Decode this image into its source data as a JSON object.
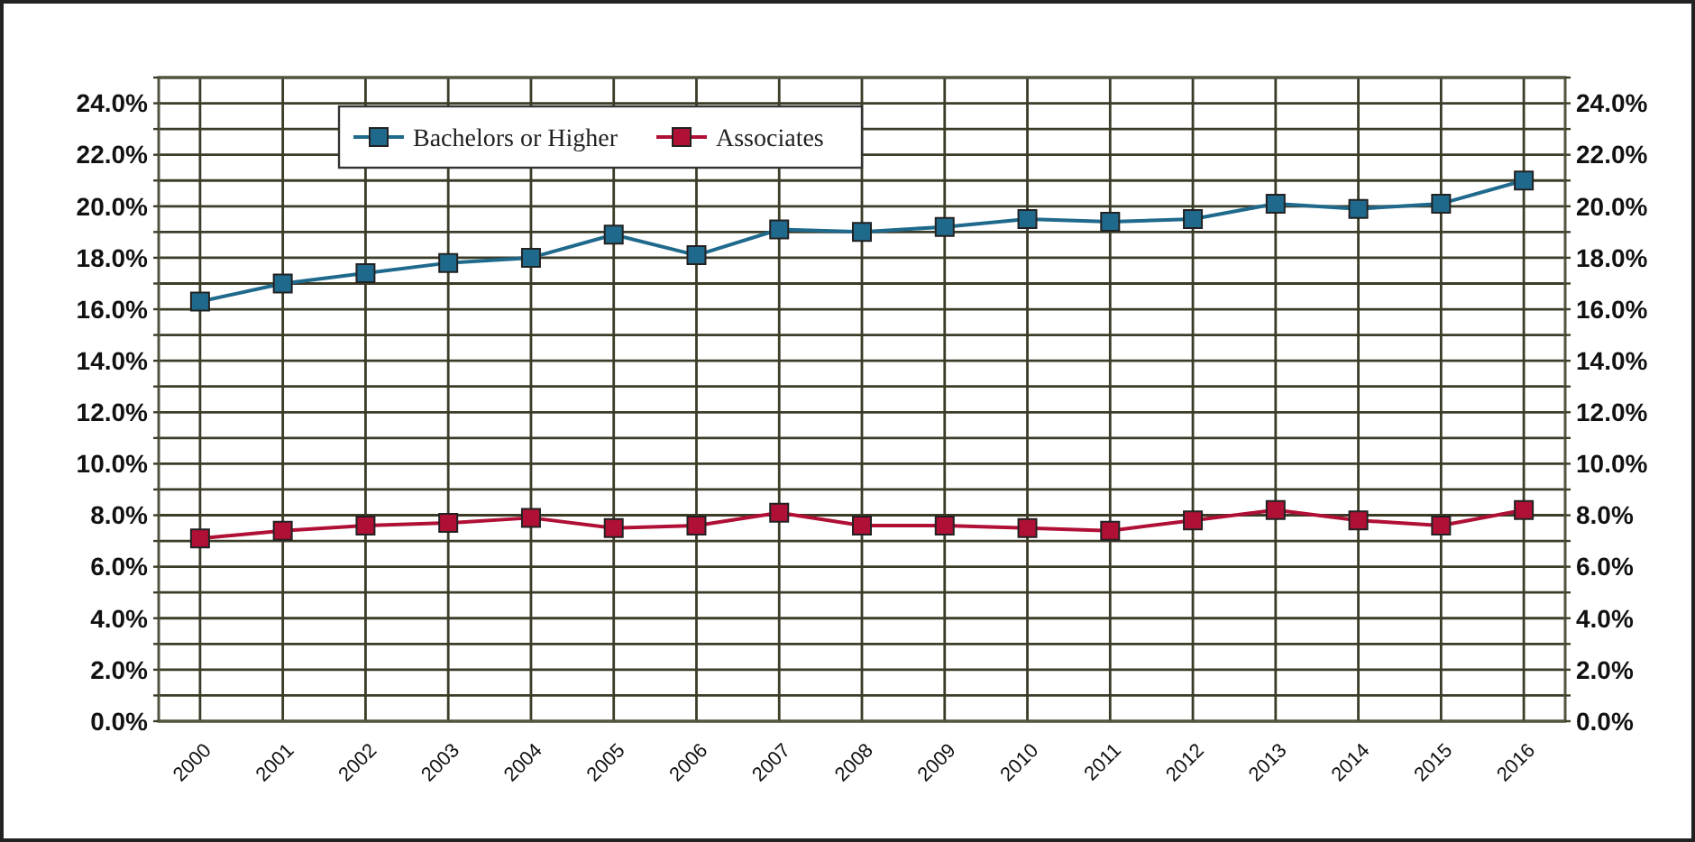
{
  "chart_data": {
    "type": "line",
    "categories": [
      "2000",
      "2001",
      "2002",
      "2003",
      "2004",
      "2005",
      "2006",
      "2007",
      "2008",
      "2009",
      "2010",
      "2011",
      "2012",
      "2013",
      "2014",
      "2015",
      "2016"
    ],
    "series": [
      {
        "name": "Bachelors or Higher",
        "color": "#1f6a8c",
        "values": [
          16.3,
          17.0,
          17.4,
          17.8,
          18.0,
          18.9,
          18.1,
          19.1,
          19.0,
          19.2,
          19.5,
          19.4,
          19.5,
          20.1,
          19.9,
          20.1,
          21.0
        ]
      },
      {
        "name": "Associates",
        "color": "#b01035",
        "values": [
          7.1,
          7.4,
          7.6,
          7.7,
          7.9,
          7.5,
          7.6,
          8.1,
          7.6,
          7.6,
          7.5,
          7.4,
          7.8,
          8.2,
          7.8,
          7.6,
          8.2
        ]
      }
    ],
    "ylim": [
      0,
      25
    ],
    "yticks": [
      {
        "value": 0,
        "label": "0.0%"
      },
      {
        "value": 1,
        "label": null
      },
      {
        "value": 2,
        "label": "2.0%"
      },
      {
        "value": 3,
        "label": null
      },
      {
        "value": 4,
        "label": "4.0%"
      },
      {
        "value": 5,
        "label": null
      },
      {
        "value": 6,
        "label": "6.0%"
      },
      {
        "value": 7,
        "label": null
      },
      {
        "value": 8,
        "label": "8.0%"
      },
      {
        "value": 9,
        "label": null
      },
      {
        "value": 10,
        "label": "10.0%"
      },
      {
        "value": 11,
        "label": null
      },
      {
        "value": 12,
        "label": "12.0%"
      },
      {
        "value": 13,
        "label": null
      },
      {
        "value": 14,
        "label": "14.0%"
      },
      {
        "value": 15,
        "label": null
      },
      {
        "value": 16,
        "label": "16.0%"
      },
      {
        "value": 17,
        "label": null
      },
      {
        "value": 18,
        "label": "18.0%"
      },
      {
        "value": 19,
        "label": null
      },
      {
        "value": 20,
        "label": "20.0%"
      },
      {
        "value": 21,
        "label": null
      },
      {
        "value": 22,
        "label": "22.0%"
      },
      {
        "value": 23,
        "label": null
      },
      {
        "value": 24,
        "label": "24.0%"
      },
      {
        "value": 25,
        "label": null
      }
    ],
    "y2lim": [
      0,
      25
    ],
    "y2ticks": [
      {
        "value": 0,
        "label": "0.0%"
      },
      {
        "value": 1,
        "label": null
      },
      {
        "value": 2,
        "label": "2.0%"
      },
      {
        "value": 3,
        "label": null
      },
      {
        "value": 4,
        "label": "4.0%"
      },
      {
        "value": 5,
        "label": null
      },
      {
        "value": 6,
        "label": "6.0%"
      },
      {
        "value": 7,
        "label": null
      },
      {
        "value": 8,
        "label": "8.0%"
      },
      {
        "value": 9,
        "label": null
      },
      {
        "value": 10,
        "label": "10.0%"
      },
      {
        "value": 11,
        "label": null
      },
      {
        "value": 12,
        "label": "12.0%"
      },
      {
        "value": 13,
        "label": null
      },
      {
        "value": 14,
        "label": "14.0%"
      },
      {
        "value": 15,
        "label": null
      },
      {
        "value": 16,
        "label": "16.0%"
      },
      {
        "value": 17,
        "label": null
      },
      {
        "value": 18,
        "label": "18.0%"
      },
      {
        "value": 19,
        "label": null
      },
      {
        "value": 20,
        "label": "20.0%"
      },
      {
        "value": 21,
        "label": null
      },
      {
        "value": 22,
        "label": "22.0%"
      },
      {
        "value": 23,
        "label": null
      },
      {
        "value": 24,
        "label": "24.0%"
      },
      {
        "value": 25,
        "label": null
      }
    ],
    "grid": true,
    "legend": "top left",
    "marker": "square",
    "line_style": "solid"
  }
}
